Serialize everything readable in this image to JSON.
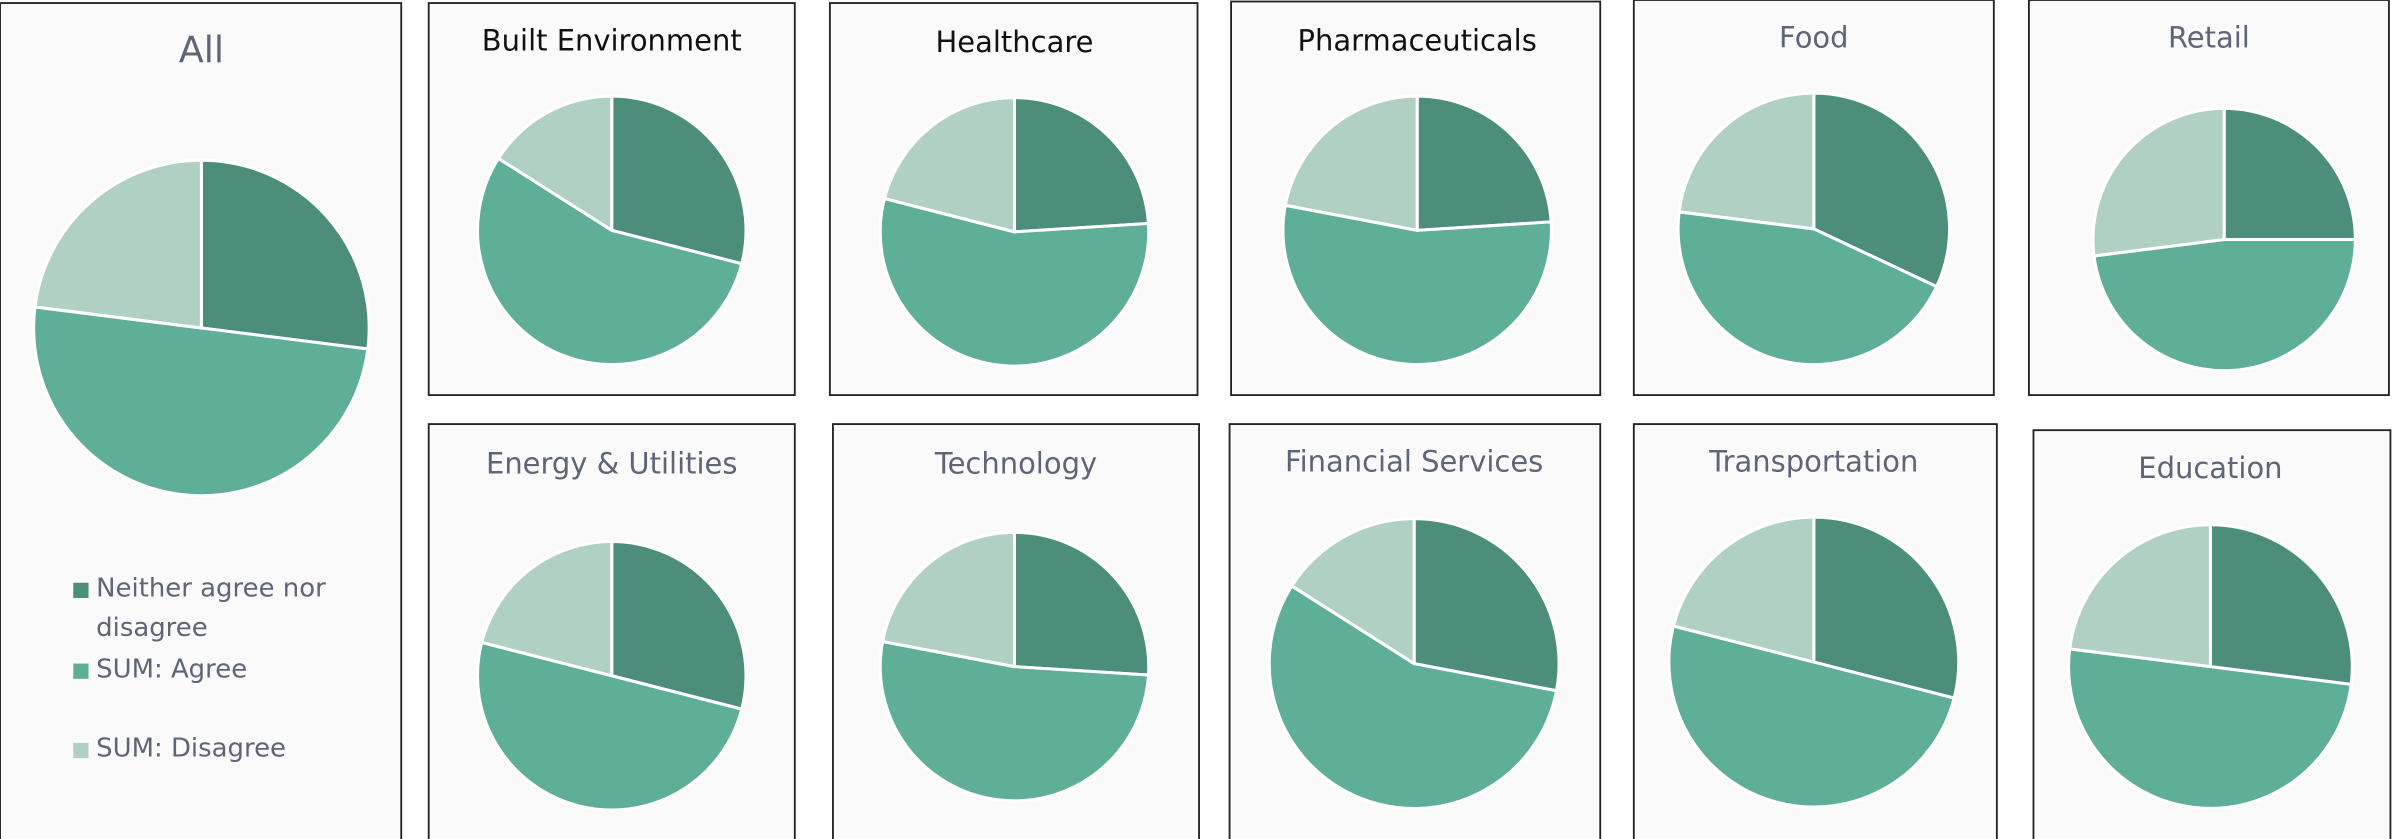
{
  "chart_data": [
    {
      "type": "pie",
      "title": "All",
      "categories": [
        "Neither agree nor disagree",
        "SUM: Agree",
        "SUM: Disagree"
      ],
      "values": [
        27,
        50,
        23
      ],
      "colors": [
        "#4d8e7a",
        "#5fae97",
        "#b0d0c4"
      ],
      "legend": true
    },
    {
      "type": "pie",
      "title": "Built Environment",
      "categories": [
        "Neither agree nor disagree",
        "SUM: Agree",
        "SUM: Disagree"
      ],
      "values": [
        29,
        55,
        16
      ],
      "colors": [
        "#4d8e7a",
        "#5fae97",
        "#b0d0c4"
      ]
    },
    {
      "type": "pie",
      "title": "Healthcare",
      "categories": [
        "Neither agree nor disagree",
        "SUM: Agree",
        "SUM: Disagree"
      ],
      "values": [
        24,
        55,
        21
      ],
      "colors": [
        "#4d8e7a",
        "#5fae97",
        "#b0d0c4"
      ]
    },
    {
      "type": "pie",
      "title": "Pharmaceuticals",
      "categories": [
        "Neither agree nor disagree",
        "SUM: Agree",
        "SUM: Disagree"
      ],
      "values": [
        24,
        54,
        22
      ],
      "colors": [
        "#4d8e7a",
        "#5fae97",
        "#b0d0c4"
      ]
    },
    {
      "type": "pie",
      "title": "Food",
      "categories": [
        "Neither agree nor disagree",
        "SUM: Agree",
        "SUM: Disagree"
      ],
      "values": [
        32,
        45,
        23
      ],
      "colors": [
        "#4d8e7a",
        "#5fae97",
        "#b0d0c4"
      ]
    },
    {
      "type": "pie",
      "title": "Retail",
      "categories": [
        "Neither agree nor disagree",
        "SUM: Agree",
        "SUM: Disagree"
      ],
      "values": [
        25,
        48,
        27
      ],
      "colors": [
        "#4d8e7a",
        "#5fae97",
        "#b0d0c4"
      ]
    },
    {
      "type": "pie",
      "title": "Energy & Utilities",
      "categories": [
        "Neither agree nor disagree",
        "SUM: Agree",
        "SUM: Disagree"
      ],
      "values": [
        29,
        50,
        21
      ],
      "colors": [
        "#4d8e7a",
        "#5fae97",
        "#b0d0c4"
      ]
    },
    {
      "type": "pie",
      "title": "Technology",
      "categories": [
        "Neither agree nor disagree",
        "SUM: Agree",
        "SUM: Disagree"
      ],
      "values": [
        26,
        52,
        22
      ],
      "colors": [
        "#4d8e7a",
        "#5fae97",
        "#b0d0c4"
      ]
    },
    {
      "type": "pie",
      "title": "Financial Services",
      "categories": [
        "Neither agree nor disagree",
        "SUM: Agree",
        "SUM: Disagree"
      ],
      "values": [
        28,
        56,
        16
      ],
      "colors": [
        "#4d8e7a",
        "#5fae97",
        "#b0d0c4"
      ]
    },
    {
      "type": "pie",
      "title": "Transportation",
      "categories": [
        "Neither agree nor disagree",
        "SUM: Agree",
        "SUM: Disagree"
      ],
      "values": [
        29,
        50,
        21
      ],
      "colors": [
        "#4d8e7a",
        "#5fae97",
        "#b0d0c4"
      ]
    },
    {
      "type": "pie",
      "title": "Education",
      "categories": [
        "Neither agree nor disagree",
        "SUM: Agree",
        "SUM: Disagree"
      ],
      "values": [
        27,
        50,
        23
      ],
      "colors": [
        "#4d8e7a",
        "#5fae97",
        "#b0d0c4"
      ]
    }
  ]
}
